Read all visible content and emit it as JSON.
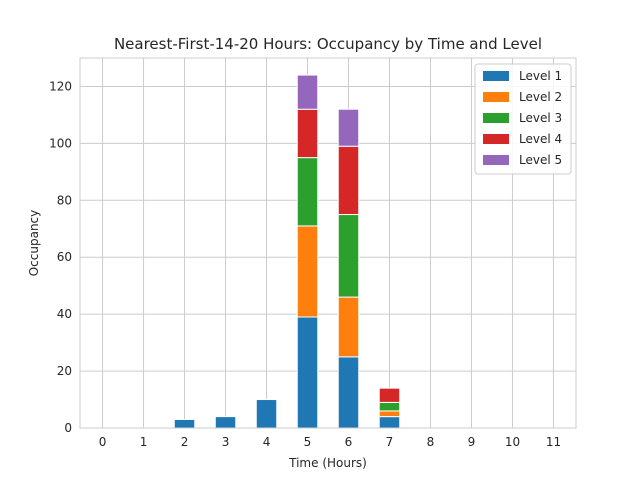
{
  "chart_data": {
    "type": "bar",
    "stacked": true,
    "title": "Nearest-First-14-20 Hours: Occupancy by Time and Level",
    "xlabel": "Time (Hours)",
    "ylabel": "Occupancy",
    "categories": [
      "0",
      "1",
      "2",
      "3",
      "4",
      "5",
      "6",
      "7",
      "8",
      "9",
      "10",
      "11"
    ],
    "ylim": [
      0,
      130
    ],
    "yticks": [
      0,
      20,
      40,
      60,
      80,
      100,
      120
    ],
    "grid": true,
    "legend_position": "top-right",
    "series": [
      {
        "name": "Level 1",
        "color": "#1f77b4",
        "values": [
          0,
          0,
          3,
          4,
          10,
          39,
          25,
          4,
          0,
          0,
          0,
          0
        ]
      },
      {
        "name": "Level 2",
        "color": "#ff7f0e",
        "values": [
          0,
          0,
          0,
          0,
          0,
          32,
          21,
          2,
          0,
          0,
          0,
          0
        ]
      },
      {
        "name": "Level 3",
        "color": "#2ca02c",
        "values": [
          0,
          0,
          0,
          0,
          0,
          24,
          29,
          3,
          0,
          0,
          0,
          0
        ]
      },
      {
        "name": "Level 4",
        "color": "#d62728",
        "values": [
          0,
          0,
          0,
          0,
          0,
          17,
          24,
          5,
          0,
          0,
          0,
          0
        ]
      },
      {
        "name": "Level 5",
        "color": "#9467bd",
        "values": [
          0,
          0,
          0,
          0,
          0,
          12,
          13,
          0,
          0,
          0,
          0,
          0
        ]
      }
    ]
  }
}
